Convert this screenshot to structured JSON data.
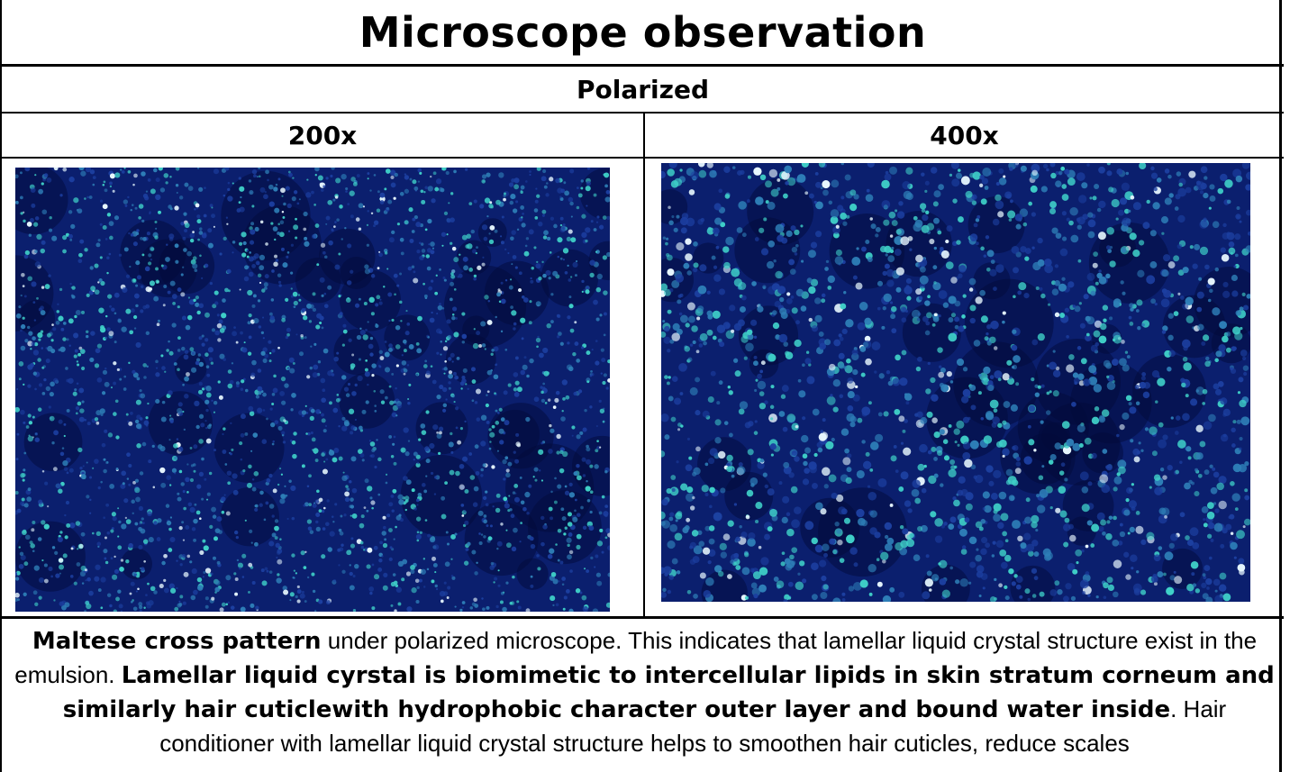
{
  "title": "Microscope observation",
  "subtitle": "Polarized",
  "magnifications": {
    "left": "200x",
    "right": "400x"
  },
  "images": {
    "left": {
      "icon": "polarized-micrograph-200x",
      "colors": [
        "#0b1f6e",
        "#1c3fa0",
        "#2e7fb8",
        "#3fd0c8",
        "#e8f8ff"
      ]
    },
    "right": {
      "icon": "polarized-micrograph-400x",
      "colors": [
        "#0b1f6e",
        "#1c3fa0",
        "#2e7fb8",
        "#3fd0c8",
        "#e8f8ff"
      ]
    }
  },
  "caption": {
    "part1_bold": "Maltese cross pattern",
    "part2": " under polarized microscope. This indicates that lamellar liquid crystal structure exist in the emulsion. ",
    "part3_bold": "Lamellar liquid cyrstal is biomimetic to intercellular lipids in skin stratum corneum and similarly hair cuticlewith hydrophobic character outer layer and bound water inside",
    "part4": ". Hair conditioner with lamellar liquid crystal structure helps to smoothen hair cuticles, reduce scales"
  }
}
